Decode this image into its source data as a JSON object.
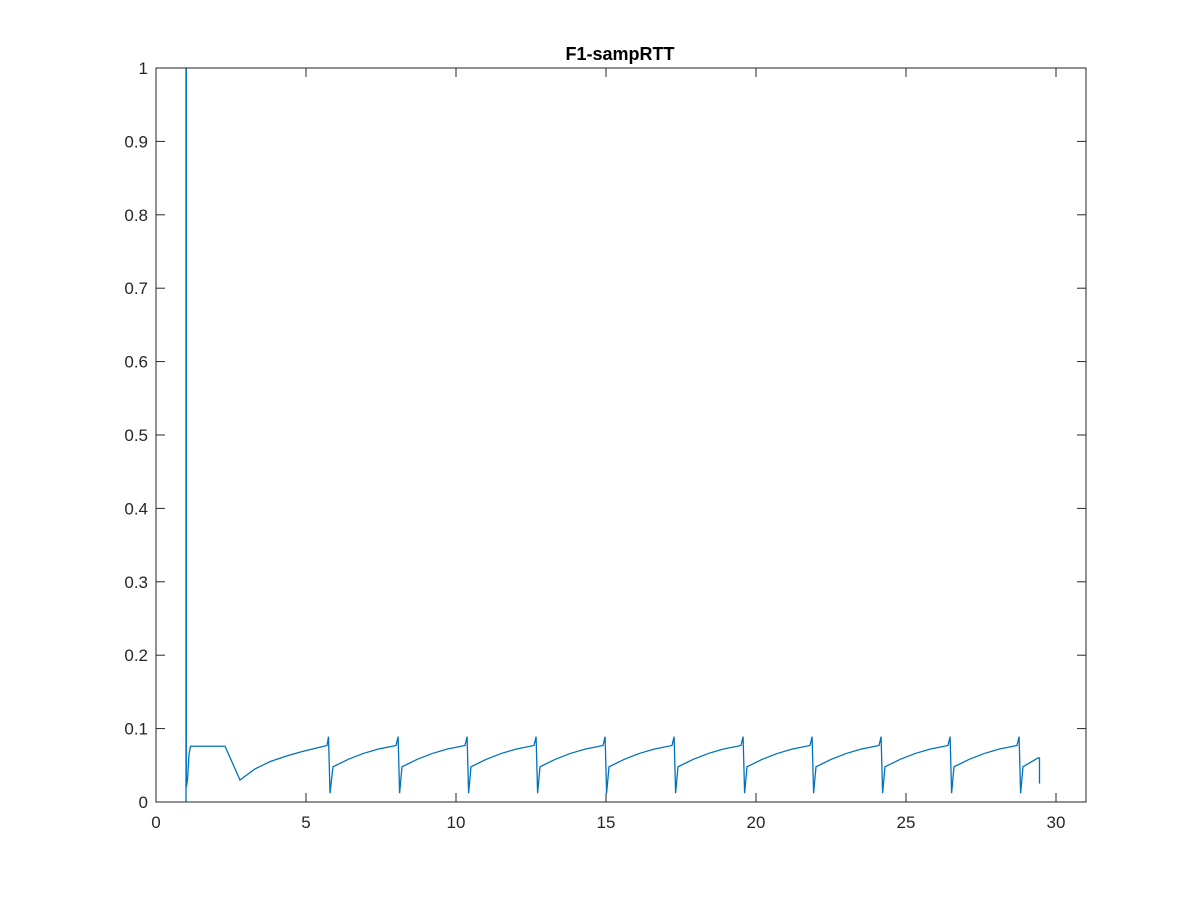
{
  "chart_data": {
    "type": "line",
    "title": "F1-sampRTT",
    "xlabel": "",
    "ylabel": "",
    "xlim": [
      0,
      31
    ],
    "ylim": [
      0,
      1
    ],
    "grid": false,
    "line_color": "#0072BD",
    "x_ticks": [
      "0",
      "5",
      "10",
      "15",
      "20",
      "25",
      "30"
    ],
    "x_tick_values": [
      0,
      5,
      10,
      15,
      20,
      25,
      30
    ],
    "y_ticks": [
      "0",
      "0.1",
      "0.2",
      "0.3",
      "0.4",
      "0.5",
      "0.6",
      "0.7",
      "0.8",
      "0.9",
      "1"
    ],
    "y_tick_values": [
      0,
      0.1,
      0.2,
      0.3,
      0.4,
      0.5,
      0.6,
      0.7,
      0.8,
      0.9,
      1
    ],
    "series": [
      {
        "x": [
          1.0,
          1.0,
          1.01,
          1.01,
          1.05,
          1.1,
          1.15,
          1.2,
          1.3,
          2.3,
          2.8,
          3.3,
          3.8,
          4.3,
          4.8,
          5.3,
          5.7,
          5.75,
          5.8,
          5.9,
          6.4,
          6.9,
          7.4,
          8.0,
          8.07,
          8.12,
          8.2,
          8.7,
          9.2,
          9.7,
          10.3,
          10.37,
          10.42,
          10.5,
          11.0,
          11.5,
          12.0,
          12.6,
          12.67,
          12.72,
          12.8,
          13.3,
          13.8,
          14.3,
          14.9,
          14.97,
          15.02,
          15.1,
          15.6,
          16.1,
          16.6,
          17.2,
          17.27,
          17.32,
          17.4,
          17.9,
          18.4,
          18.9,
          19.5,
          19.57,
          19.62,
          19.7,
          20.2,
          20.7,
          21.2,
          21.8,
          21.87,
          21.92,
          22.0,
          22.5,
          23.0,
          23.5,
          24.1,
          24.17,
          24.22,
          24.3,
          24.8,
          25.3,
          25.8,
          26.4,
          26.47,
          26.52,
          26.6,
          27.1,
          27.6,
          28.1,
          28.7,
          28.77,
          28.82,
          28.9,
          29.4,
          29.45,
          29.45
        ],
        "y": [
          0.0,
          1.0,
          1.0,
          0.02,
          0.03,
          0.065,
          0.076,
          0.076,
          0.076,
          0.076,
          0.03,
          0.045,
          0.055,
          0.062,
          0.068,
          0.073,
          0.077,
          0.089,
          0.012,
          0.048,
          0.058,
          0.066,
          0.072,
          0.077,
          0.089,
          0.012,
          0.048,
          0.058,
          0.066,
          0.072,
          0.077,
          0.089,
          0.012,
          0.048,
          0.058,
          0.066,
          0.072,
          0.077,
          0.089,
          0.012,
          0.048,
          0.058,
          0.066,
          0.072,
          0.077,
          0.089,
          0.012,
          0.048,
          0.058,
          0.066,
          0.072,
          0.077,
          0.089,
          0.012,
          0.048,
          0.058,
          0.066,
          0.072,
          0.077,
          0.089,
          0.012,
          0.048,
          0.058,
          0.066,
          0.072,
          0.077,
          0.089,
          0.012,
          0.048,
          0.058,
          0.066,
          0.072,
          0.077,
          0.089,
          0.012,
          0.048,
          0.058,
          0.066,
          0.072,
          0.077,
          0.089,
          0.012,
          0.048,
          0.058,
          0.066,
          0.072,
          0.077,
          0.089,
          0.012,
          0.048,
          0.06,
          0.06,
          0.025
        ]
      }
    ]
  }
}
